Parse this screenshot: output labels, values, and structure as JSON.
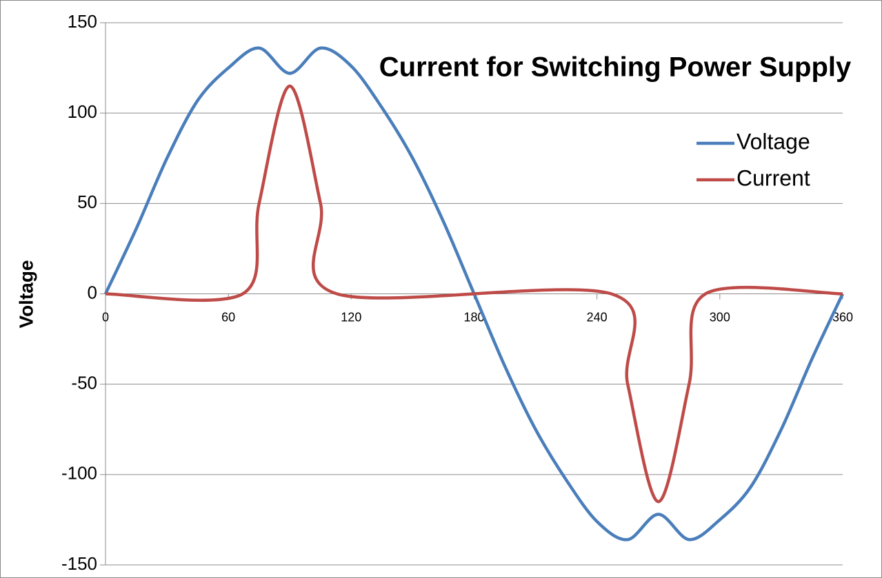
{
  "chart_data": {
    "type": "line",
    "title": "Current for Switching Power Supply",
    "ylabel": "Voltage",
    "series": [
      {
        "name": "Voltage",
        "color": "#4a7ebb",
        "x": [
          0,
          15,
          30,
          45,
          60,
          75,
          90,
          105,
          120,
          135,
          150,
          165,
          180,
          195,
          210,
          225,
          240,
          255,
          270,
          285,
          300,
          315,
          330,
          345,
          360
        ],
        "values": [
          0,
          36,
          75,
          107,
          125,
          136,
          122,
          136,
          126,
          103,
          75,
          40,
          0,
          -40,
          -75,
          -103,
          -126,
          -136,
          -122,
          -136,
          -125,
          -107,
          -75,
          -36,
          0
        ]
      },
      {
        "name": "Current",
        "color": "#be4b48",
        "x": [
          0,
          67,
          75,
          90,
          105,
          113,
          247,
          255,
          270,
          285,
          293,
          360
        ],
        "values": [
          0,
          0,
          50,
          115,
          50,
          0,
          0,
          -50,
          -115,
          -50,
          0,
          0
        ]
      }
    ],
    "xlim": [
      0,
      360
    ],
    "xticks": [
      0,
      60,
      120,
      180,
      240,
      300,
      360
    ],
    "ylim": [
      -150,
      150
    ],
    "yticks": [
      -150,
      -100,
      -50,
      0,
      50,
      100,
      150
    ],
    "grid": true,
    "legend": "upper right"
  }
}
